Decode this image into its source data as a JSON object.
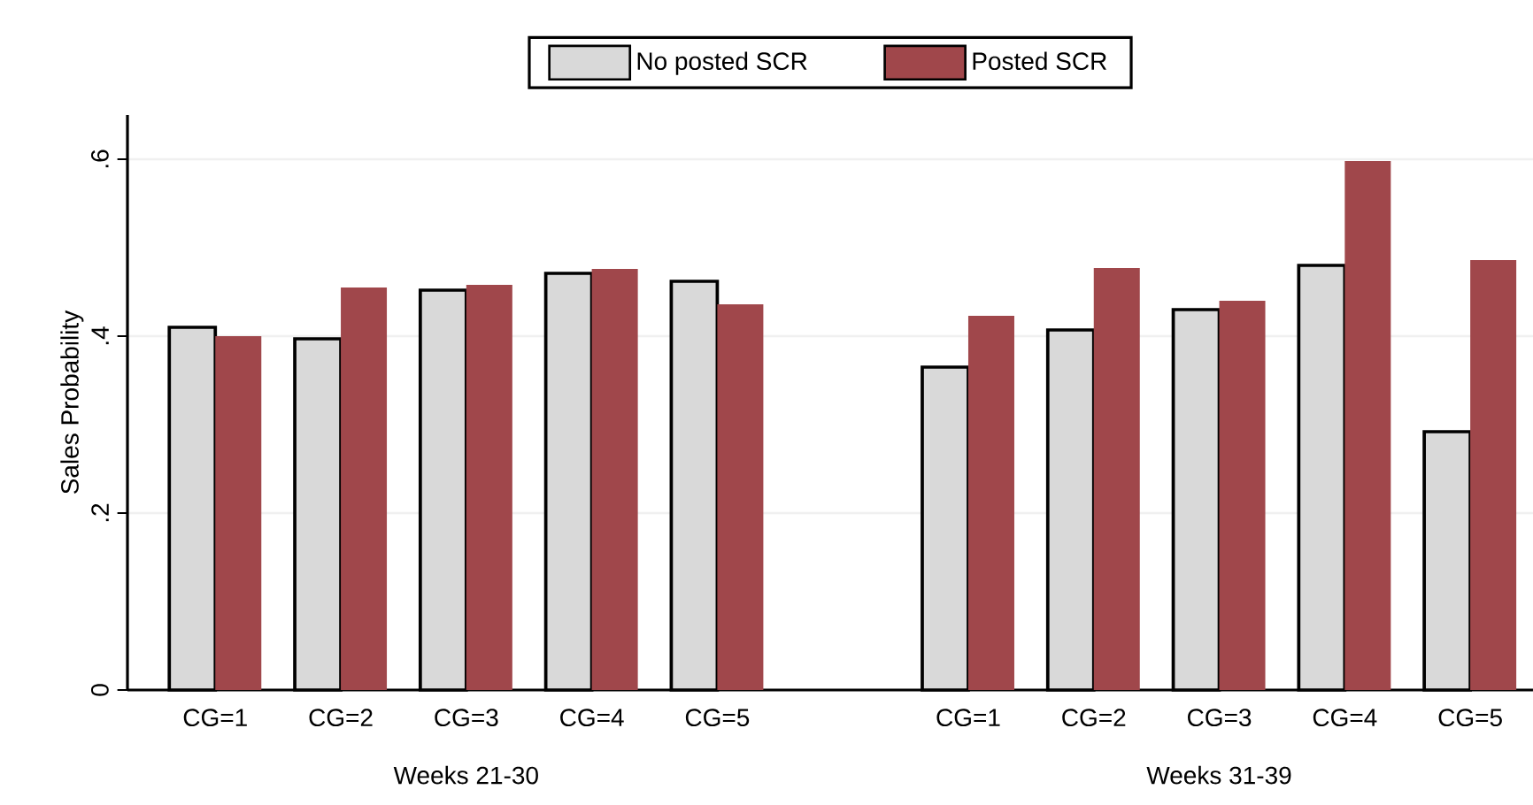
{
  "chart_data": {
    "type": "bar",
    "categories": [
      "CG=1",
      "CG=2",
      "CG=3",
      "CG=4",
      "CG=5",
      null,
      "CG=1",
      "CG=2",
      "CG=3",
      "CG=4",
      "CG=5"
    ],
    "ylabel": "Sales Probability",
    "series": [
      {
        "name": "No posted SCR",
        "color": "#d9d9d9",
        "values": [
          0.41,
          0.397,
          0.452,
          0.471,
          0.462,
          null,
          0.365,
          0.407,
          0.43,
          0.48,
          0.292
        ]
      },
      {
        "name": "Posted SCR",
        "color": "#a0474b",
        "values": [
          0.4,
          0.455,
          0.458,
          0.476,
          0.436,
          null,
          0.423,
          0.477,
          0.44,
          0.598,
          0.486
        ]
      }
    ],
    "annotations": [
      "Weeks 21-30",
      "Weeks 31-39"
    ],
    "ylim": [
      0,
      0.65
    ],
    "yticks": [
      0,
      {
        "value": 0.2,
        "label": ".2"
      },
      {
        "value": 0.4,
        "label": ".4"
      },
      {
        "value": 0.6,
        "label": ".6"
      }
    ],
    "grid": "y",
    "legend": "top"
  }
}
